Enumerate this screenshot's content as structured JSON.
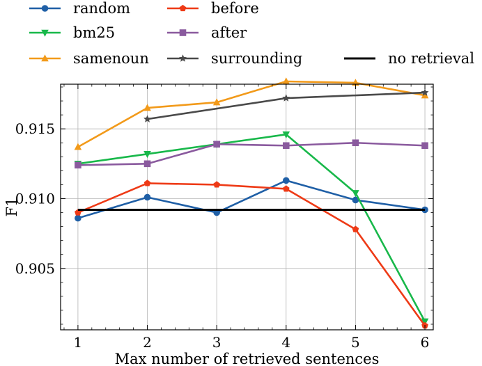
{
  "chart_data": {
    "type": "line",
    "xlabel": "Max number of retrieved sentences",
    "ylabel": "F1",
    "xlim": [
      0.75,
      6.12
    ],
    "ylim": [
      0.9006,
      0.9182
    ],
    "x_ticks": [
      1,
      2,
      3,
      4,
      5,
      6
    ],
    "y_ticks": [
      0.905,
      0.91,
      0.915
    ],
    "y_tick_labels": [
      "0.905",
      "0.910",
      "0.915"
    ],
    "grid": true,
    "legend_placement": "top (outside plot)",
    "series": [
      {
        "name": "random",
        "color": "#1f5fa6",
        "marker": "circle",
        "x": [
          1,
          2,
          3,
          4,
          5,
          6
        ],
        "y": [
          0.9086,
          0.9101,
          0.909,
          0.9113,
          0.9099,
          0.9092
        ]
      },
      {
        "name": "bm25",
        "color": "#18b84a",
        "marker": "triangle-down",
        "x": [
          1,
          2,
          3,
          4,
          5,
          6
        ],
        "y": [
          0.9125,
          0.9132,
          0.9139,
          0.9146,
          0.9104,
          0.9012
        ]
      },
      {
        "name": "samenoun",
        "color": "#f29a1a",
        "marker": "triangle-up",
        "x": [
          1,
          2,
          3,
          4,
          5,
          6
        ],
        "y": [
          0.9137,
          0.9165,
          0.9169,
          0.9184,
          0.9183,
          0.9174
        ]
      },
      {
        "name": "before",
        "color": "#ee3a16",
        "marker": "pentagon",
        "x": [
          1,
          2,
          3,
          4,
          5,
          6
        ],
        "y": [
          0.909,
          0.9111,
          0.911,
          0.9107,
          0.9078,
          0.9009
        ]
      },
      {
        "name": "after",
        "color": "#8a5a9e",
        "marker": "square",
        "x": [
          1,
          2,
          3,
          4,
          5,
          6
        ],
        "y": [
          0.9124,
          0.9125,
          0.9139,
          0.9138,
          0.914,
          0.9138
        ]
      },
      {
        "name": "surrounding",
        "color": "#4a4a4a",
        "marker": "star",
        "x": [
          2,
          4,
          6
        ],
        "y": [
          0.9157,
          0.9172,
          0.9176
        ]
      },
      {
        "name": "no retrieval",
        "color": "#000000",
        "marker": "none",
        "x": [
          1,
          6
        ],
        "y": [
          0.9092,
          0.9092
        ]
      }
    ]
  }
}
